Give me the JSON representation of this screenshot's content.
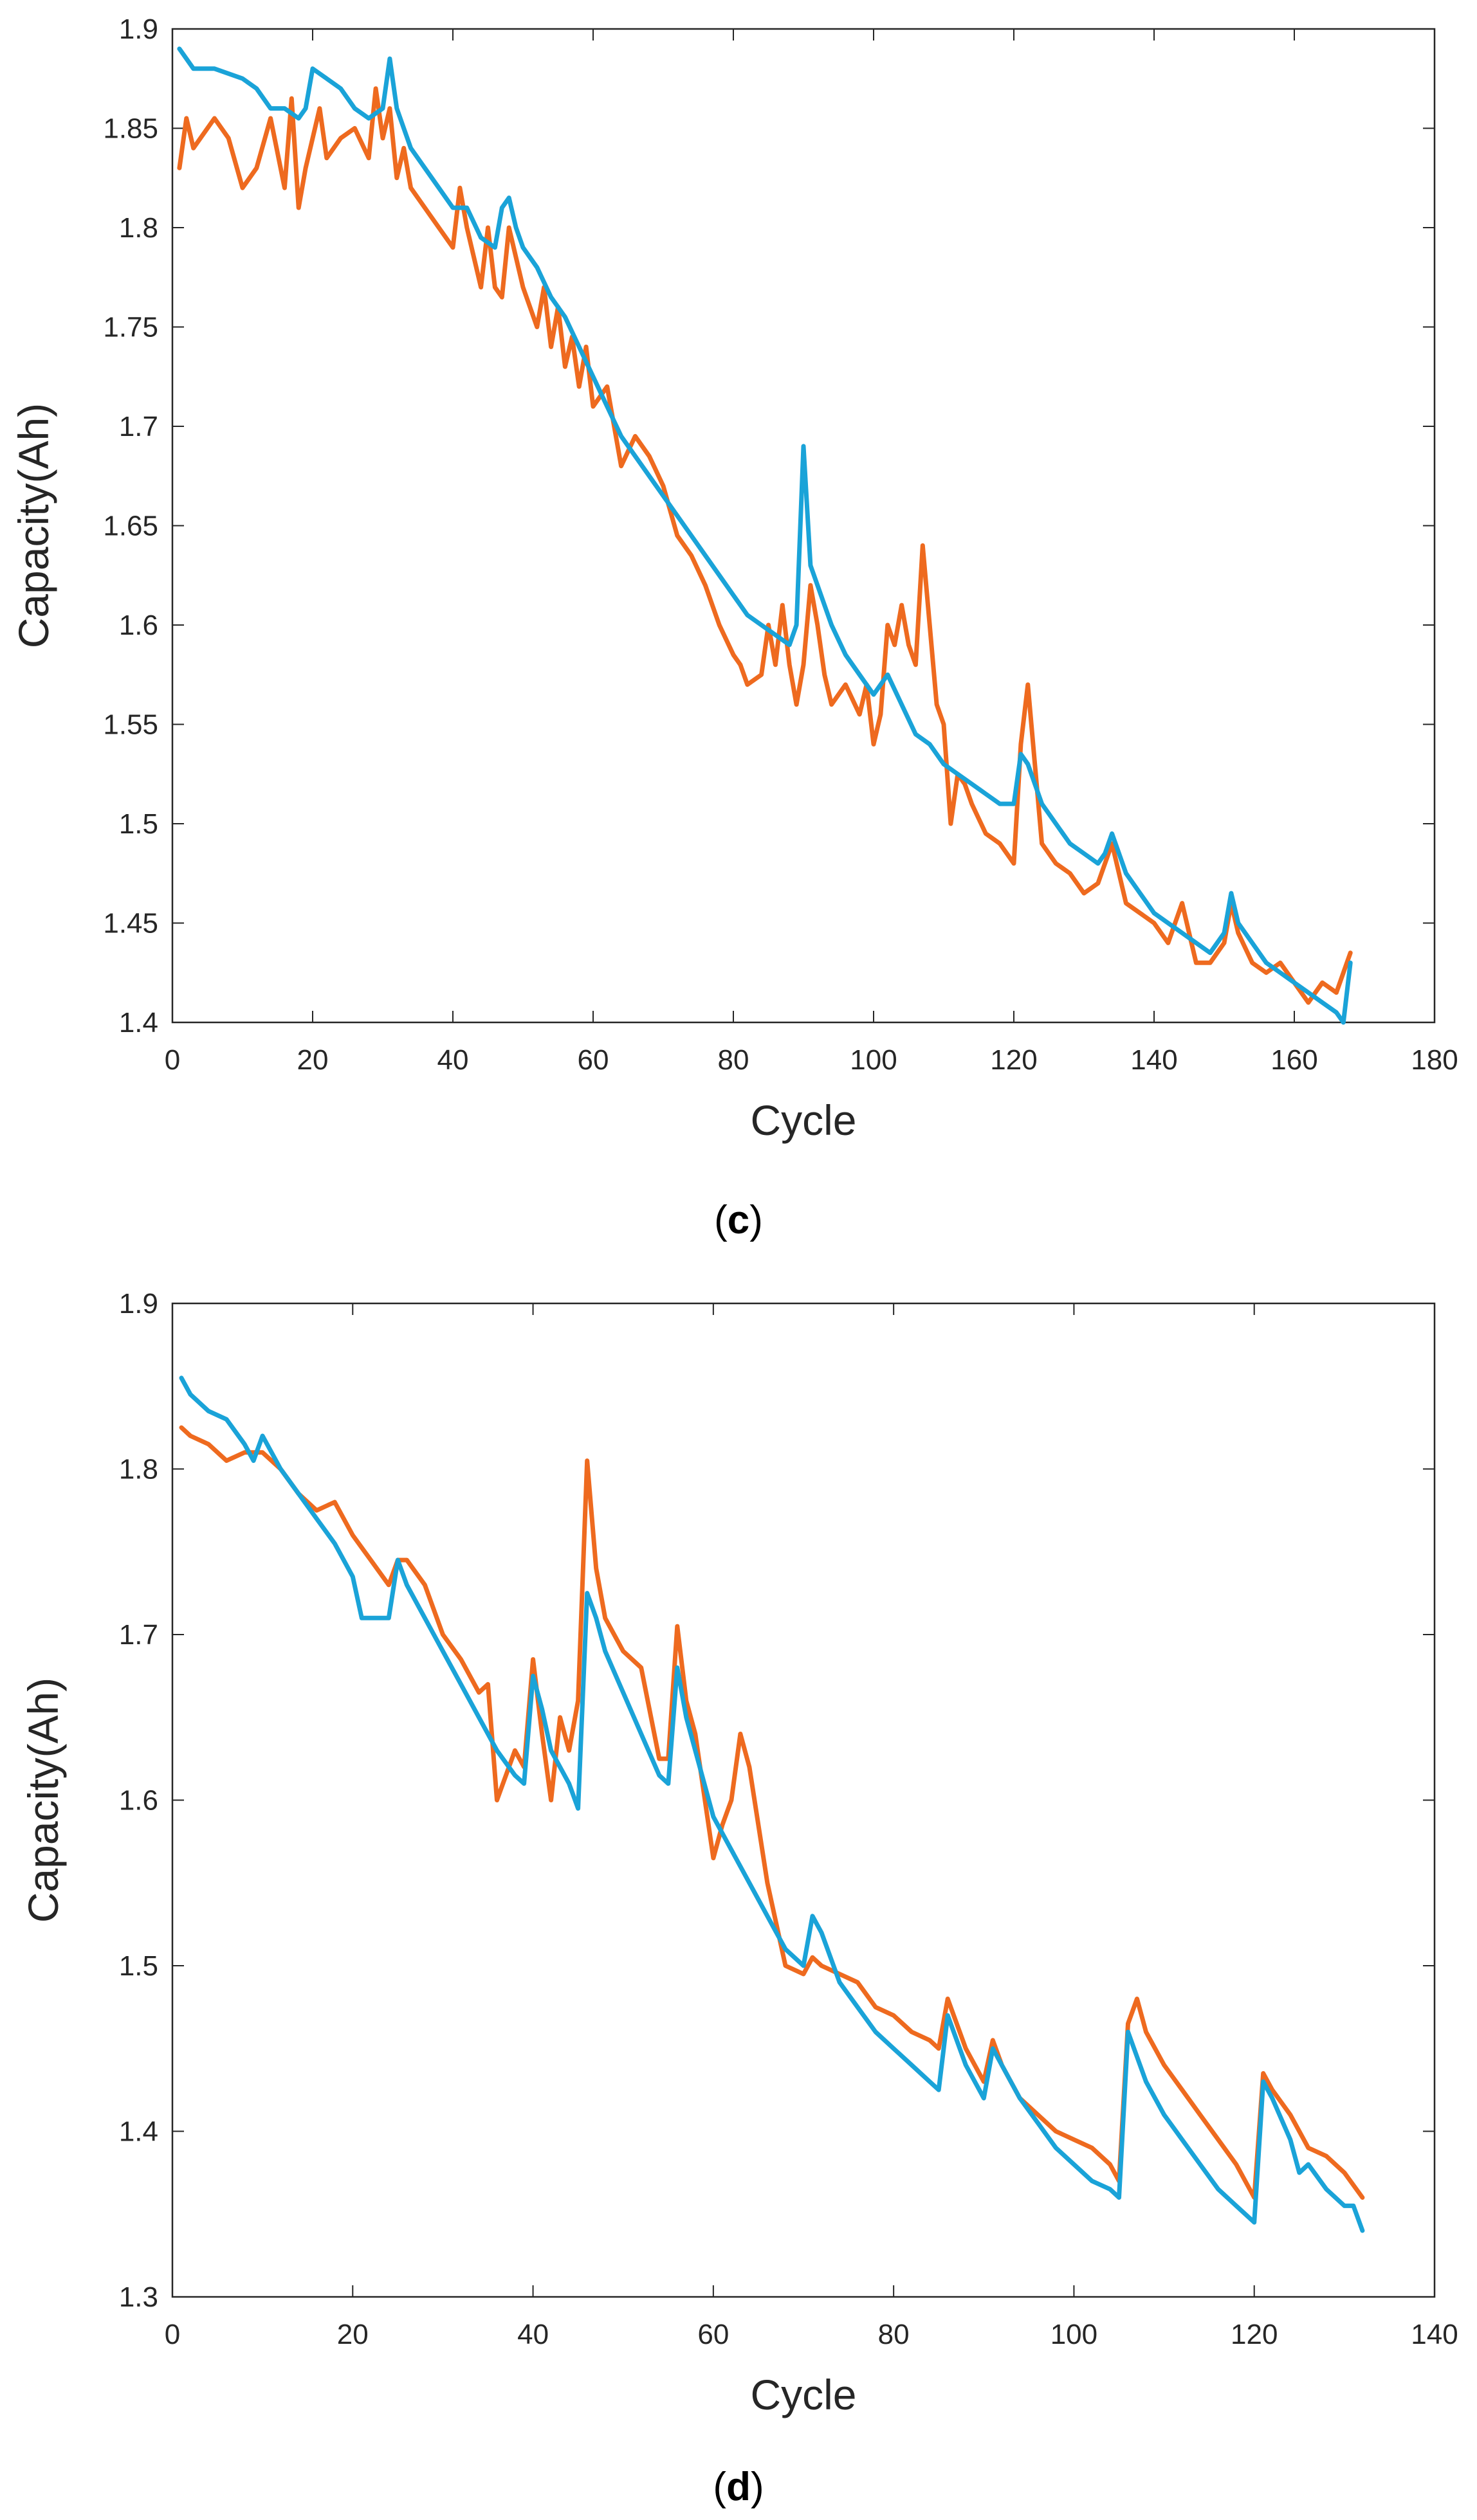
{
  "chart_data": [
    {
      "panel": "c",
      "type": "line",
      "title": "",
      "xlabel": "Cycle",
      "ylabel": "Capacity(Ah)",
      "xlim": [
        0,
        180
      ],
      "ylim": [
        1.4,
        1.9
      ],
      "xticks": [
        "0",
        "20",
        "40",
        "60",
        "80",
        "100",
        "120",
        "140",
        "160",
        "180"
      ],
      "yticks": [
        "1.4",
        "1.45",
        "1.5",
        "1.55",
        "1.6",
        "1.65",
        "1.7",
        "1.75",
        "1.8",
        "1.85",
        "1.9"
      ],
      "grid": false,
      "series": [
        {
          "color": "#EE6A1F",
          "x": [
            1,
            2,
            3,
            4,
            6,
            8,
            10,
            12,
            14,
            16,
            17,
            18,
            19,
            20,
            21,
            22,
            24,
            26,
            28,
            29,
            30,
            31,
            32,
            33,
            34,
            36,
            38,
            40,
            41,
            42,
            44,
            45,
            46,
            47,
            48,
            49,
            50,
            52,
            53,
            54,
            55,
            56,
            57,
            58,
            59,
            60,
            62,
            64,
            66,
            68,
            70,
            72,
            74,
            76,
            78,
            80,
            81,
            82,
            84,
            85,
            86,
            87,
            88,
            89,
            90,
            91,
            92,
            93,
            94,
            96,
            98,
            99,
            100,
            101,
            102,
            103,
            104,
            105,
            106,
            107,
            108,
            109,
            110,
            111,
            112,
            113,
            114,
            116,
            118,
            120,
            121,
            122,
            124,
            126,
            128,
            130,
            132,
            134,
            136,
            138,
            140,
            142,
            144,
            146,
            148,
            150,
            151,
            152,
            154,
            156,
            158,
            160,
            162,
            164,
            166,
            168
          ],
          "y": [
            1.83,
            1.855,
            1.84,
            1.845,
            1.855,
            1.845,
            1.82,
            1.83,
            1.855,
            1.82,
            1.865,
            1.81,
            1.83,
            1.845,
            1.86,
            1.835,
            1.845,
            1.85,
            1.835,
            1.87,
            1.845,
            1.86,
            1.825,
            1.84,
            1.82,
            1.81,
            1.8,
            1.79,
            1.82,
            1.8,
            1.77,
            1.8,
            1.77,
            1.765,
            1.8,
            1.785,
            1.77,
            1.75,
            1.77,
            1.74,
            1.76,
            1.73,
            1.745,
            1.72,
            1.74,
            1.71,
            1.72,
            1.68,
            1.695,
            1.685,
            1.67,
            1.645,
            1.635,
            1.62,
            1.6,
            1.585,
            1.58,
            1.57,
            1.575,
            1.6,
            1.58,
            1.61,
            1.58,
            1.56,
            1.58,
            1.62,
            1.6,
            1.575,
            1.56,
            1.57,
            1.555,
            1.57,
            1.54,
            1.555,
            1.6,
            1.59,
            1.61,
            1.59,
            1.58,
            1.64,
            1.6,
            1.56,
            1.55,
            1.5,
            1.525,
            1.52,
            1.51,
            1.495,
            1.49,
            1.48,
            1.54,
            1.57,
            1.49,
            1.48,
            1.475,
            1.465,
            1.47,
            1.49,
            1.46,
            1.455,
            1.45,
            1.44,
            1.46,
            1.43,
            1.43,
            1.44,
            1.46,
            1.445,
            1.43,
            1.425,
            1.43,
            1.42,
            1.41,
            1.42,
            1.415,
            1.435
          ]
        },
        {
          "color": "#1AA3D8",
          "x": [
            1,
            2,
            3,
            6,
            10,
            12,
            14,
            16,
            18,
            19,
            20,
            22,
            24,
            26,
            28,
            30,
            31,
            32,
            34,
            36,
            38,
            40,
            42,
            44,
            46,
            47,
            48,
            49,
            50,
            52,
            54,
            56,
            58,
            60,
            62,
            64,
            66,
            68,
            70,
            72,
            74,
            76,
            78,
            80,
            82,
            84,
            86,
            88,
            89,
            90,
            91,
            92,
            94,
            96,
            98,
            100,
            102,
            104,
            106,
            108,
            110,
            112,
            114,
            116,
            118,
            120,
            121,
            122,
            124,
            126,
            128,
            130,
            132,
            133,
            134,
            136,
            138,
            140,
            142,
            144,
            146,
            148,
            150,
            151,
            152,
            154,
            156,
            158,
            160,
            162,
            164,
            166,
            167,
            168
          ],
          "y": [
            1.89,
            1.885,
            1.88,
            1.88,
            1.875,
            1.87,
            1.86,
            1.86,
            1.855,
            1.86,
            1.88,
            1.875,
            1.87,
            1.86,
            1.855,
            1.86,
            1.885,
            1.86,
            1.84,
            1.83,
            1.82,
            1.81,
            1.81,
            1.795,
            1.79,
            1.81,
            1.815,
            1.8,
            1.79,
            1.78,
            1.765,
            1.755,
            1.74,
            1.725,
            1.71,
            1.695,
            1.685,
            1.675,
            1.665,
            1.655,
            1.645,
            1.635,
            1.625,
            1.615,
            1.605,
            1.6,
            1.595,
            1.59,
            1.6,
            1.69,
            1.63,
            1.62,
            1.6,
            1.585,
            1.575,
            1.565,
            1.575,
            1.56,
            1.545,
            1.54,
            1.53,
            1.525,
            1.52,
            1.515,
            1.51,
            1.51,
            1.535,
            1.53,
            1.51,
            1.5,
            1.49,
            1.485,
            1.48,
            1.485,
            1.495,
            1.475,
            1.465,
            1.455,
            1.45,
            1.445,
            1.44,
            1.435,
            1.445,
            1.465,
            1.45,
            1.44,
            1.43,
            1.425,
            1.42,
            1.415,
            1.41,
            1.405,
            1.4,
            1.43
          ]
        }
      ]
    },
    {
      "panel": "d",
      "type": "line",
      "title": "",
      "xlabel": "Cycle",
      "ylabel": "Capacity(Ah)",
      "xlim": [
        0,
        140
      ],
      "ylim": [
        1.3,
        1.9
      ],
      "xticks": [
        "0",
        "20",
        "40",
        "60",
        "80",
        "100",
        "120",
        "140"
      ],
      "yticks": [
        "1.3",
        "1.4",
        "1.5",
        "1.6",
        "1.7",
        "1.8",
        "1.9"
      ],
      "grid": false,
      "series": [
        {
          "color": "#EE6A1F",
          "x": [
            1,
            2,
            4,
            6,
            8,
            10,
            12,
            14,
            16,
            18,
            20,
            22,
            24,
            25,
            26,
            28,
            30,
            32,
            34,
            35,
            36,
            38,
            39,
            40,
            41,
            42,
            43,
            44,
            45,
            46,
            47,
            48,
            50,
            52,
            54,
            55,
            56,
            57,
            58,
            60,
            61,
            62,
            63,
            64,
            66,
            68,
            70,
            71,
            72,
            74,
            76,
            78,
            80,
            82,
            84,
            85,
            86,
            88,
            90,
            91,
            92,
            94,
            96,
            98,
            100,
            102,
            104,
            105,
            106,
            107,
            108,
            110,
            112,
            114,
            116,
            118,
            120,
            121,
            122,
            124,
            126,
            128,
            130,
            132
          ],
          "y": [
            1.825,
            1.82,
            1.815,
            1.805,
            1.81,
            1.81,
            1.8,
            1.785,
            1.775,
            1.78,
            1.76,
            1.745,
            1.73,
            1.745,
            1.745,
            1.73,
            1.7,
            1.685,
            1.665,
            1.67,
            1.6,
            1.63,
            1.62,
            1.685,
            1.64,
            1.6,
            1.65,
            1.63,
            1.66,
            1.805,
            1.74,
            1.71,
            1.69,
            1.68,
            1.625,
            1.625,
            1.705,
            1.66,
            1.64,
            1.565,
            1.585,
            1.6,
            1.64,
            1.62,
            1.55,
            1.5,
            1.495,
            1.505,
            1.5,
            1.495,
            1.49,
            1.475,
            1.47,
            1.46,
            1.455,
            1.45,
            1.48,
            1.45,
            1.43,
            1.455,
            1.44,
            1.42,
            1.41,
            1.4,
            1.395,
            1.39,
            1.38,
            1.37,
            1.465,
            1.48,
            1.46,
            1.44,
            1.425,
            1.41,
            1.395,
            1.38,
            1.36,
            1.435,
            1.425,
            1.41,
            1.39,
            1.385,
            1.375,
            1.36
          ]
        },
        {
          "color": "#1AA3D8",
          "x": [
            1,
            2,
            4,
            6,
            8,
            9,
            10,
            12,
            14,
            16,
            18,
            20,
            21,
            22,
            24,
            25,
            26,
            28,
            30,
            32,
            34,
            36,
            38,
            39,
            40,
            41,
            42,
            44,
            45,
            46,
            47,
            48,
            50,
            52,
            54,
            55,
            56,
            57,
            58,
            60,
            62,
            64,
            66,
            68,
            70,
            71,
            72,
            74,
            76,
            78,
            80,
            82,
            84,
            85,
            86,
            88,
            90,
            91,
            92,
            94,
            96,
            98,
            100,
            102,
            104,
            105,
            106,
            108,
            110,
            112,
            114,
            116,
            118,
            120,
            121,
            122,
            124,
            125,
            126,
            128,
            130,
            131,
            132
          ],
          "y": [
            1.855,
            1.845,
            1.835,
            1.83,
            1.815,
            1.805,
            1.82,
            1.8,
            1.785,
            1.77,
            1.755,
            1.735,
            1.71,
            1.71,
            1.71,
            1.745,
            1.73,
            1.71,
            1.69,
            1.67,
            1.65,
            1.63,
            1.615,
            1.61,
            1.675,
            1.655,
            1.63,
            1.61,
            1.595,
            1.725,
            1.71,
            1.69,
            1.665,
            1.64,
            1.615,
            1.61,
            1.68,
            1.65,
            1.63,
            1.59,
            1.57,
            1.55,
            1.53,
            1.51,
            1.5,
            1.53,
            1.52,
            1.49,
            1.475,
            1.46,
            1.45,
            1.44,
            1.43,
            1.425,
            1.47,
            1.44,
            1.42,
            1.45,
            1.44,
            1.42,
            1.405,
            1.39,
            1.38,
            1.37,
            1.365,
            1.36,
            1.46,
            1.43,
            1.41,
            1.395,
            1.38,
            1.365,
            1.355,
            1.345,
            1.43,
            1.42,
            1.395,
            1.375,
            1.38,
            1.365,
            1.355,
            1.355,
            1.34
          ]
        }
      ]
    }
  ]
}
